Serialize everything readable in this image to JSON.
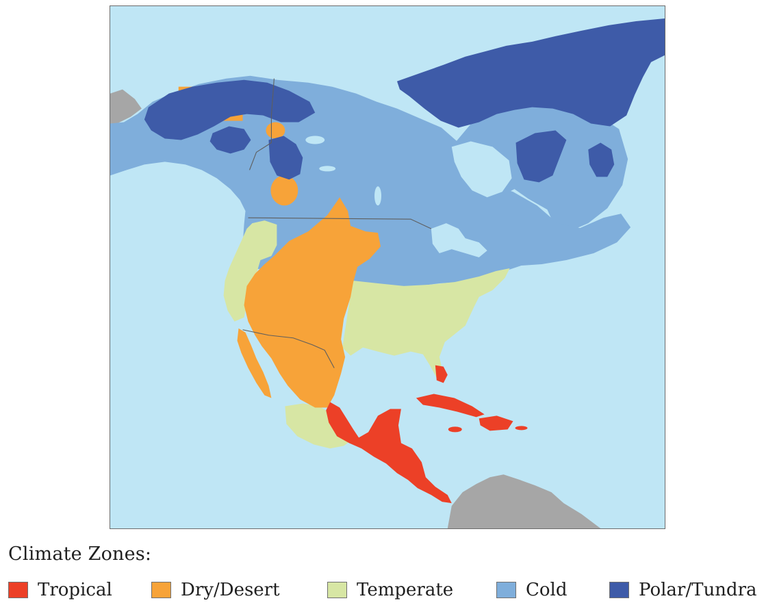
{
  "map": {
    "colors": {
      "ocean": "#bfe6f5",
      "other_land": "#a6a6a6",
      "border": "#5e5e5e",
      "tropical": "#ec4027",
      "dry": "#f7a339",
      "temperate": "#d7e6a4",
      "cold": "#7faedb",
      "polar": "#3e5ba8"
    }
  },
  "legend": {
    "title": "Climate Zones:",
    "items": [
      {
        "label": "Tropical",
        "color": "#ec4027"
      },
      {
        "label": "Dry/Desert",
        "color": "#f7a339"
      },
      {
        "label": "Temperate",
        "color": "#d7e6a4"
      },
      {
        "label": "Cold",
        "color": "#7faedb"
      },
      {
        "label": "Polar/Tundra",
        "color": "#3e5ba8"
      }
    ]
  }
}
